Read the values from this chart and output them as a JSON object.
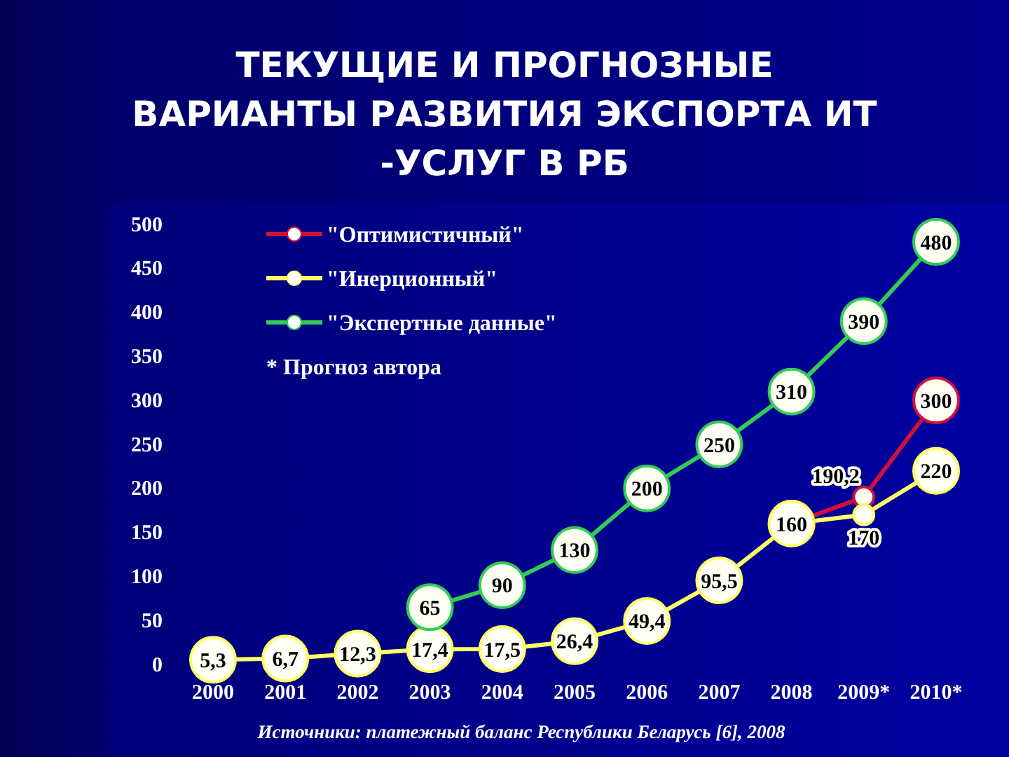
{
  "chart_data": {
    "type": "line",
    "title": "ТЕКУЩИЕ И ПРОГНОЗНЫЕ\nВАРИАНТЫ РАЗВИТИЯ ЭКСПОРТА ИТ\n-УСЛУГ В РБ",
    "categories": [
      "2000",
      "2001",
      "2002",
      "2003",
      "2004",
      "2005",
      "2006",
      "2007",
      "2008",
      "2009*",
      "2010*"
    ],
    "series": [
      {
        "name": "\"Оптимистичный\"",
        "color": "#d0103a",
        "values": [
          null,
          null,
          null,
          null,
          null,
          null,
          null,
          null,
          160,
          190.2,
          300
        ],
        "value_labels": [
          null,
          null,
          null,
          null,
          null,
          null,
          null,
          null,
          null,
          "190,2",
          "300"
        ]
      },
      {
        "name": "\"Инерционный\"",
        "color": "#ffff66",
        "values": [
          5.3,
          6.7,
          12.3,
          17.4,
          17.5,
          26.4,
          49.4,
          95.5,
          160,
          170,
          220
        ],
        "value_labels": [
          "5,3",
          "6,7",
          "12,3",
          "17,4",
          "17,5",
          "26,4",
          "49,4",
          "95,5",
          "160",
          "170",
          "220"
        ]
      },
      {
        "name": "\"Экспертные данные\"",
        "color": "#33cc55",
        "values": [
          null,
          null,
          null,
          65,
          90,
          130,
          200,
          250,
          310,
          390,
          480
        ],
        "value_labels": [
          null,
          null,
          null,
          "65",
          "90",
          "130",
          "200",
          "250",
          "310",
          "390",
          "480"
        ]
      }
    ],
    "ylim": [
      0,
      500
    ],
    "yticks": [
      0,
      50,
      100,
      150,
      200,
      250,
      300,
      350,
      400,
      450,
      500
    ],
    "legend": "top left",
    "marker": "circle",
    "line_style": "solid",
    "annotations": [
      "* Прогноз автора",
      "Источники: платежный баланс Республики Беларусь [6], 2008"
    ]
  }
}
